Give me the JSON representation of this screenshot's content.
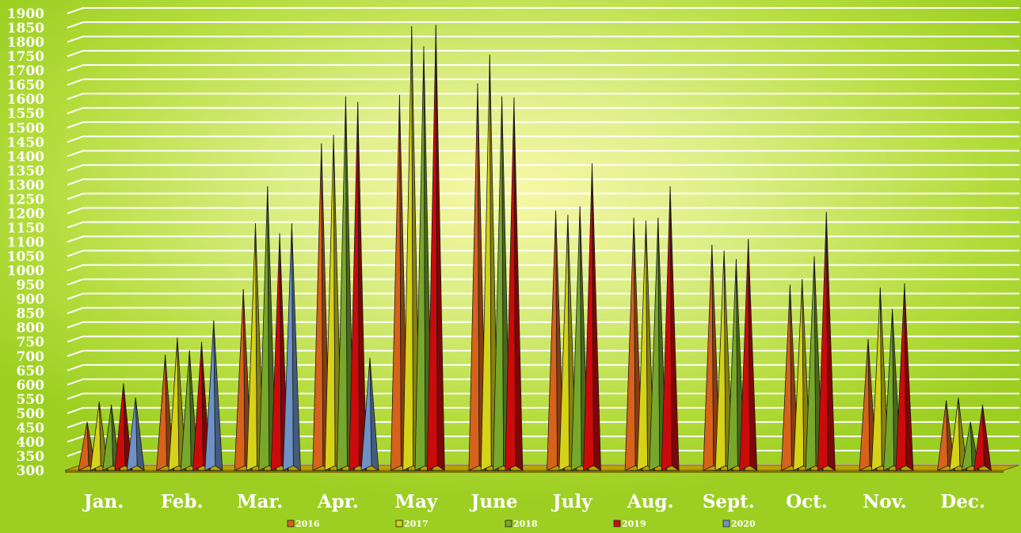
{
  "chart_data": {
    "type": "bar",
    "bar_shape": "3d-cone",
    "categories": [
      "Jan.",
      "Feb.",
      "Mar.",
      "Apr.",
      "May",
      "June",
      "July",
      "Aug.",
      "Sept.",
      "Oct.",
      "Nov.",
      "Dec."
    ],
    "ylim": [
      300,
      1900
    ],
    "yticks": [
      300,
      350,
      400,
      450,
      500,
      550,
      600,
      650,
      700,
      750,
      800,
      850,
      900,
      950,
      1000,
      1050,
      1100,
      1150,
      1200,
      1250,
      1300,
      1350,
      1400,
      1450,
      1500,
      1550,
      1600,
      1650,
      1700,
      1750,
      1800,
      1850,
      1900
    ],
    "grid": true,
    "legend_position": "bottom",
    "series": [
      {
        "name": "2016",
        "color": "#d9621a",
        "values": [
          470,
          705,
          935,
          1445,
          1615,
          1655,
          1210,
          1185,
          1090,
          950,
          760,
          545
        ]
      },
      {
        "name": "2017",
        "color": "#d6d218",
        "values": [
          540,
          765,
          1165,
          1475,
          1855,
          1755,
          1195,
          1175,
          1070,
          970,
          940,
          555
        ]
      },
      {
        "name": "2018",
        "color": "#78a82a",
        "values": [
          530,
          720,
          1295,
          1610,
          1785,
          1610,
          1225,
          1185,
          1040,
          1050,
          865,
          470
        ]
      },
      {
        "name": "2019",
        "color": "#cc0a0a",
        "values": [
          605,
          750,
          1130,
          1590,
          1860,
          1605,
          1375,
          1295,
          1110,
          1205,
          955,
          530
        ]
      },
      {
        "name": "2020",
        "color": "#6d93c6",
        "values": [
          555,
          825,
          1165,
          695,
          null,
          null,
          null,
          null,
          null,
          null,
          null,
          null
        ]
      }
    ]
  }
}
